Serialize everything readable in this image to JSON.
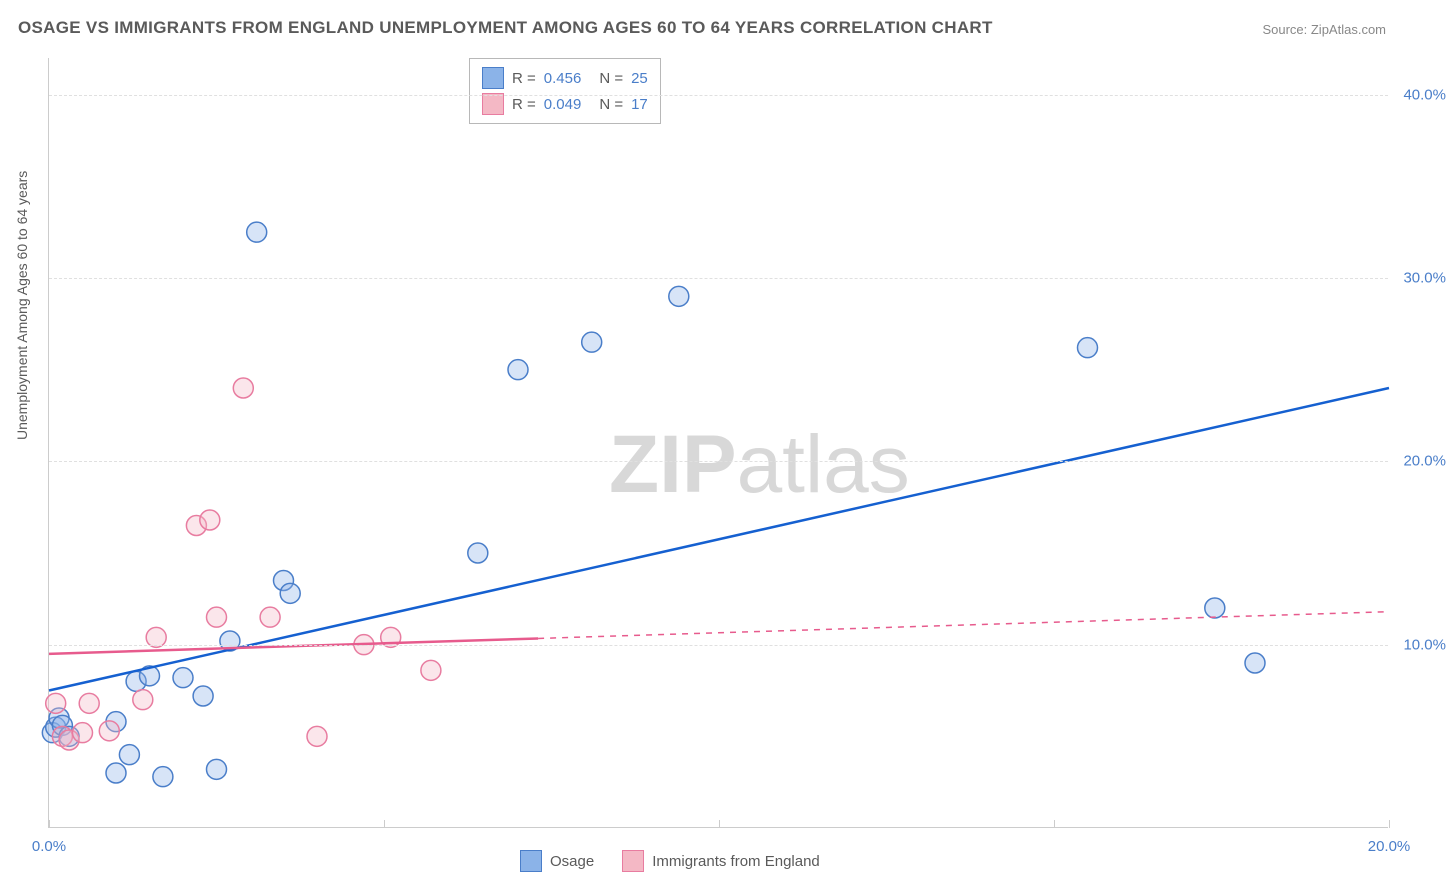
{
  "title": "OSAGE VS IMMIGRANTS FROM ENGLAND UNEMPLOYMENT AMONG AGES 60 TO 64 YEARS CORRELATION CHART",
  "source": "Source: ZipAtlas.com",
  "ylabel": "Unemployment Among Ages 60 to 64 years",
  "watermark": {
    "bold": "ZIP",
    "light": "atlas"
  },
  "chart": {
    "type": "scatter",
    "background_color": "#ffffff",
    "grid_color": "#e0e0e0",
    "axis_color": "#cccccc",
    "tick_label_color": "#4a7ec9",
    "label_color": "#5a5a5a",
    "label_fontsize": 14,
    "tick_fontsize": 15,
    "xlim": [
      0,
      20
    ],
    "ylim": [
      0,
      42
    ],
    "xticks": [
      0,
      5,
      10,
      15,
      20
    ],
    "xtick_labels": [
      "0.0%",
      "",
      "",
      "",
      "20.0%"
    ],
    "yticks": [
      10,
      20,
      30,
      40
    ],
    "ytick_labels": [
      "10.0%",
      "20.0%",
      "30.0%",
      "40.0%"
    ],
    "marker_radius": 10,
    "marker_fill_opacity": 0.35,
    "line_width": 2.5,
    "series": [
      {
        "name": "Osage",
        "color": "#8bb3e8",
        "stroke": "#4a7ec9",
        "line_color": "#1560d0",
        "R": "0.456",
        "N": "25",
        "points": [
          [
            0.05,
            5.2
          ],
          [
            0.1,
            5.5
          ],
          [
            0.15,
            6.0
          ],
          [
            0.2,
            5.6
          ],
          [
            0.3,
            5.0
          ],
          [
            1.0,
            5.8
          ],
          [
            1.2,
            4.0
          ],
          [
            1.3,
            8.0
          ],
          [
            1.5,
            8.3
          ],
          [
            1.0,
            3.0
          ],
          [
            1.7,
            2.8
          ],
          [
            2.0,
            8.2
          ],
          [
            2.3,
            7.2
          ],
          [
            2.5,
            3.2
          ],
          [
            2.7,
            10.2
          ],
          [
            3.5,
            13.5
          ],
          [
            3.6,
            12.8
          ],
          [
            3.1,
            32.5
          ],
          [
            6.4,
            15.0
          ],
          [
            7.0,
            25.0
          ],
          [
            8.1,
            26.5
          ],
          [
            9.4,
            29.0
          ],
          [
            15.5,
            26.2
          ],
          [
            17.4,
            12.0
          ],
          [
            18.0,
            9.0
          ]
        ],
        "trend_line": {
          "x1": 0,
          "y1": 7.5,
          "x2": 20,
          "y2": 24.0,
          "solid_until_x": 20
        }
      },
      {
        "name": "Immigrants from England",
        "color": "#f4b8c5",
        "stroke": "#e87ca0",
        "line_color": "#e75b8d",
        "R": "0.049",
        "N": "17",
        "points": [
          [
            0.1,
            6.8
          ],
          [
            0.2,
            5.0
          ],
          [
            0.3,
            4.8
          ],
          [
            0.5,
            5.2
          ],
          [
            0.6,
            6.8
          ],
          [
            0.9,
            5.3
          ],
          [
            1.4,
            7.0
          ],
          [
            1.6,
            10.4
          ],
          [
            2.2,
            16.5
          ],
          [
            2.4,
            16.8
          ],
          [
            2.5,
            11.5
          ],
          [
            2.9,
            24.0
          ],
          [
            3.3,
            11.5
          ],
          [
            4.0,
            5.0
          ],
          [
            4.7,
            10.0
          ],
          [
            5.1,
            10.4
          ],
          [
            5.7,
            8.6
          ]
        ],
        "trend_line": {
          "x1": 0,
          "y1": 9.5,
          "x2": 20,
          "y2": 11.8,
          "solid_until_x": 7.3
        }
      }
    ]
  },
  "legend": {
    "series1_label": "Osage",
    "series2_label": "Immigrants from England"
  }
}
